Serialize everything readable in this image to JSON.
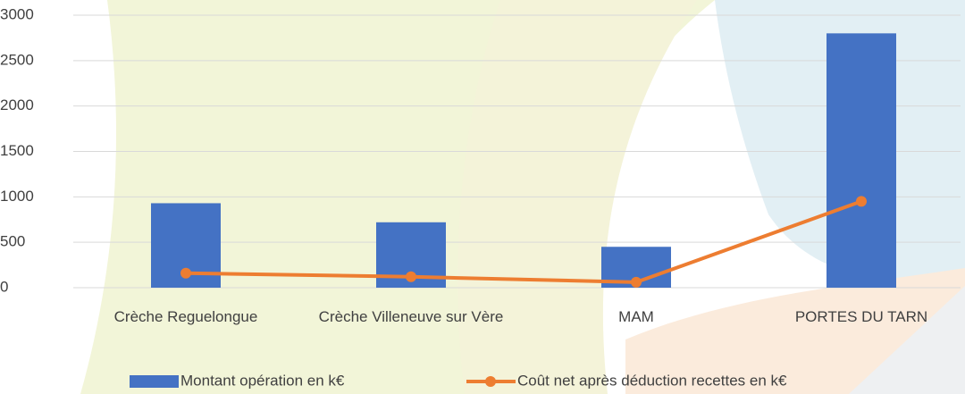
{
  "chart_data": {
    "type": "combo",
    "categories": [
      "Crèche Reguelongue",
      "Crèche Villeneuve sur Vère",
      "MAM",
      "PORTES DU TARN"
    ],
    "series": [
      {
        "name": "Montant opération en k€",
        "type": "bar",
        "color": "#4472c4",
        "values": [
          930,
          720,
          450,
          2800
        ]
      },
      {
        "name": "Coût net après déduction recettes en k€",
        "type": "line",
        "color": "#ed7d31",
        "values": [
          160,
          120,
          60,
          950
        ]
      }
    ],
    "ylim": [
      0,
      3000
    ],
    "yticks": [
      0,
      500,
      1000,
      1500,
      2000,
      2500,
      3000
    ],
    "grid": true,
    "legend": "bottom"
  }
}
